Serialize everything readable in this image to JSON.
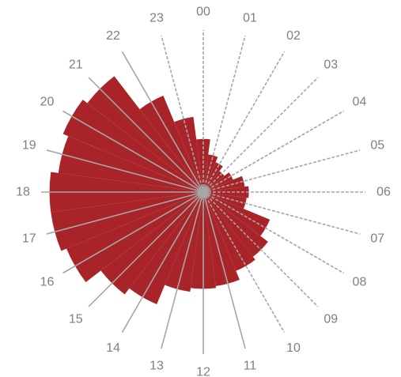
{
  "chart_data": {
    "type": "polar-bar",
    "title": "",
    "categories": [
      "00",
      "01",
      "02",
      "03",
      "04",
      "05",
      "06",
      "07",
      "08",
      "09",
      "10",
      "11",
      "12",
      "13",
      "14",
      "15",
      "16",
      "17",
      "18",
      "19",
      "20",
      "21",
      "22",
      "23"
    ],
    "values": [
      28,
      20,
      17,
      14,
      17,
      22,
      24,
      23,
      38,
      43,
      45,
      50,
      51,
      53,
      64,
      68,
      78,
      81,
      81,
      77,
      80,
      77,
      55,
      40
    ],
    "rmax": 100,
    "bar_color": "#a82428",
    "spoke_color": "#a6a6a6",
    "label_color": "#7f7f7f",
    "grid": false,
    "legend": "none"
  }
}
